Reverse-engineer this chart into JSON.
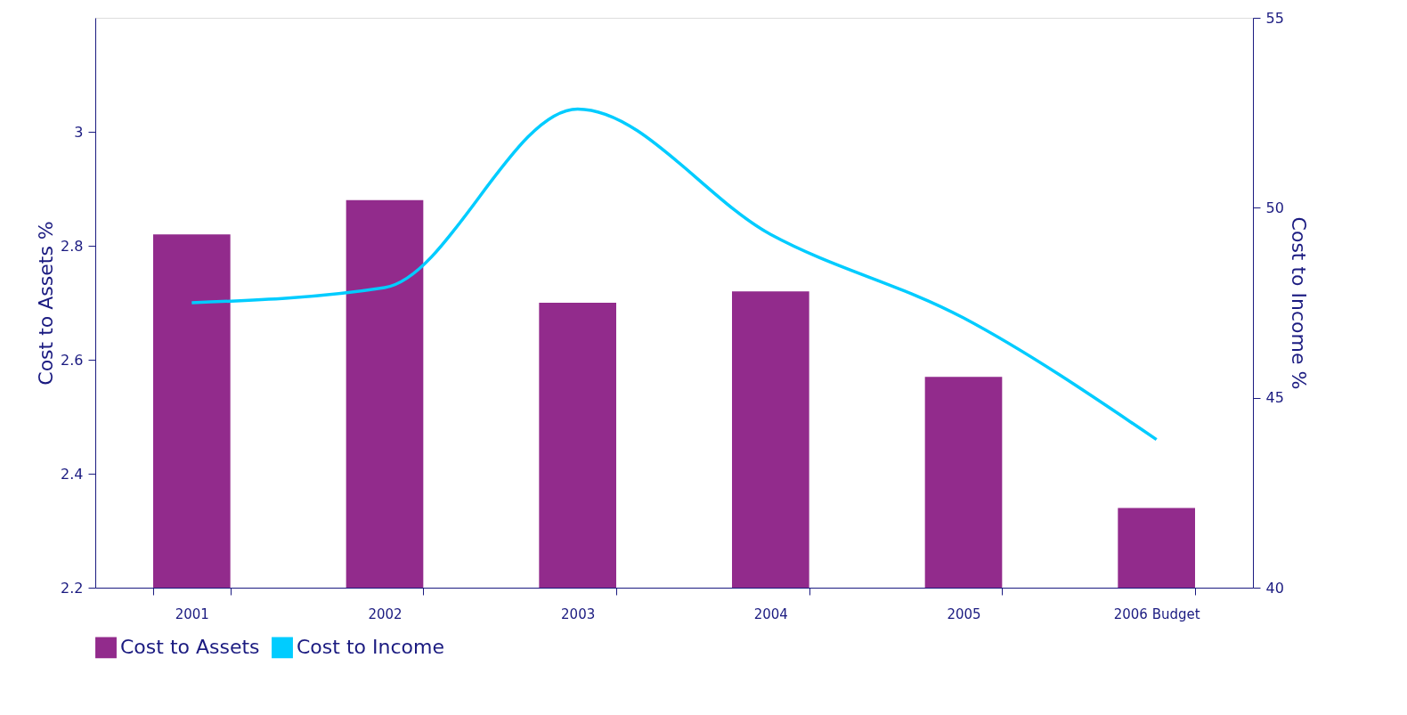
{
  "chart_data": {
    "type": "bar",
    "categories": [
      "2001",
      "2002",
      "2003",
      "2004",
      "2005",
      "2006 Budget"
    ],
    "ylabel": "Cost to Assets %",
    "y2label": "Cost to Income %",
    "ylim": [
      2.2,
      3.2
    ],
    "yticks": [
      2.2,
      2.4,
      2.6,
      2.8,
      3
    ],
    "y2lim": [
      40,
      55
    ],
    "y2ticks": [
      40,
      45,
      50,
      55
    ],
    "series": [
      {
        "name": "Cost to Assets",
        "color": "#922b8c",
        "values": [
          2.82,
          2.88,
          2.7,
          2.72,
          2.57,
          2.34
        ]
      },
      {
        "name": "Cost to Income",
        "type": "line",
        "axis": "y2",
        "color": "#00ccff",
        "values": [
          47.5,
          47.9,
          52.6,
          49.3,
          47.1,
          43.9
        ]
      }
    ],
    "legend": "bottom",
    "grid": false
  }
}
